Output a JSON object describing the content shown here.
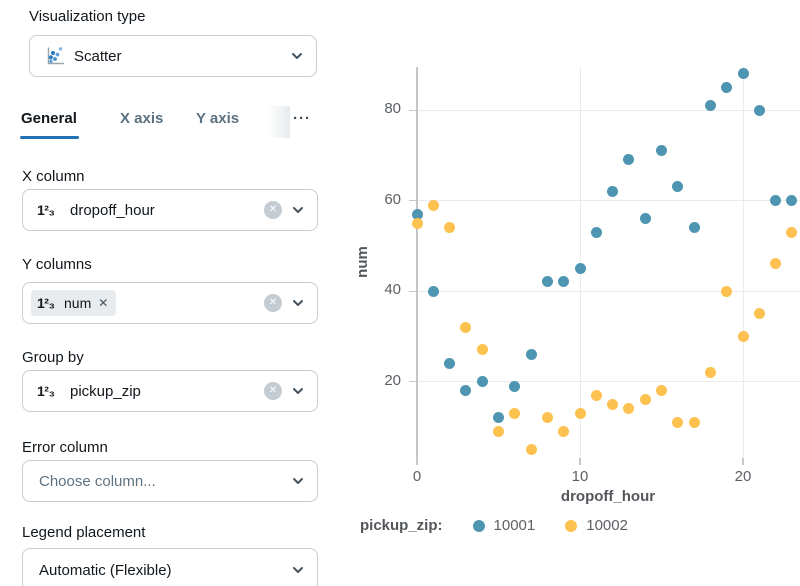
{
  "panel": {
    "viz_type": {
      "label": "Visualization type",
      "value": "Scatter"
    },
    "tabs": [
      {
        "label": "General",
        "active": true
      },
      {
        "label": "X axis",
        "active": false
      },
      {
        "label": "Y axis",
        "active": false
      },
      {
        "label": "···",
        "active": false
      }
    ],
    "x_column": {
      "label": "X column",
      "value": "dropoff_hour"
    },
    "y_columns": {
      "label": "Y columns",
      "chip": "num"
    },
    "group_by": {
      "label": "Group by",
      "value": "pickup_zip"
    },
    "error_column": {
      "label": "Error column",
      "placeholder": "Choose column..."
    },
    "legend_placement": {
      "label": "Legend placement",
      "value": "Automatic (Flexible)"
    }
  },
  "icons": {
    "number_type": "1²₃",
    "chip_remove": "✕",
    "clear": "✕"
  },
  "colors": {
    "accent": "#2272b4",
    "series_10001": "#4e95b2",
    "series_10002": "#fcc14e",
    "gridline": "#e9ebed",
    "axis": "#c2c6c9"
  },
  "chart_data": {
    "type": "scatter",
    "xlabel": "dropoff_hour",
    "ylabel": "num",
    "legend_title": "pickup_zip:",
    "legend_position": "bottom",
    "grid": true,
    "x_ticks": [
      0,
      10,
      20
    ],
    "y_ticks": [
      20,
      40,
      60,
      80
    ],
    "xlim": [
      -1,
      23.5
    ],
    "ylim": [
      3,
      89
    ],
    "x": [
      0,
      1,
      2,
      3,
      4,
      5,
      6,
      7,
      8,
      9,
      10,
      11,
      12,
      13,
      14,
      15,
      16,
      17,
      18,
      19,
      20,
      21,
      22,
      23
    ],
    "series": [
      {
        "name": "10001",
        "color": "#4e95b2",
        "values": [
          57,
          40,
          24,
          18,
          20,
          12,
          19,
          26,
          42,
          42,
          45,
          53,
          62,
          69,
          56,
          71,
          63,
          54,
          81,
          85,
          88,
          80,
          60,
          60
        ]
      },
      {
        "name": "10002",
        "color": "#fcc14e",
        "values": [
          55,
          59,
          54,
          32,
          27,
          9,
          13,
          5,
          12,
          9,
          13,
          17,
          15,
          14,
          16,
          18,
          11,
          11,
          22,
          40,
          30,
          35,
          46,
          53
        ]
      }
    ]
  }
}
